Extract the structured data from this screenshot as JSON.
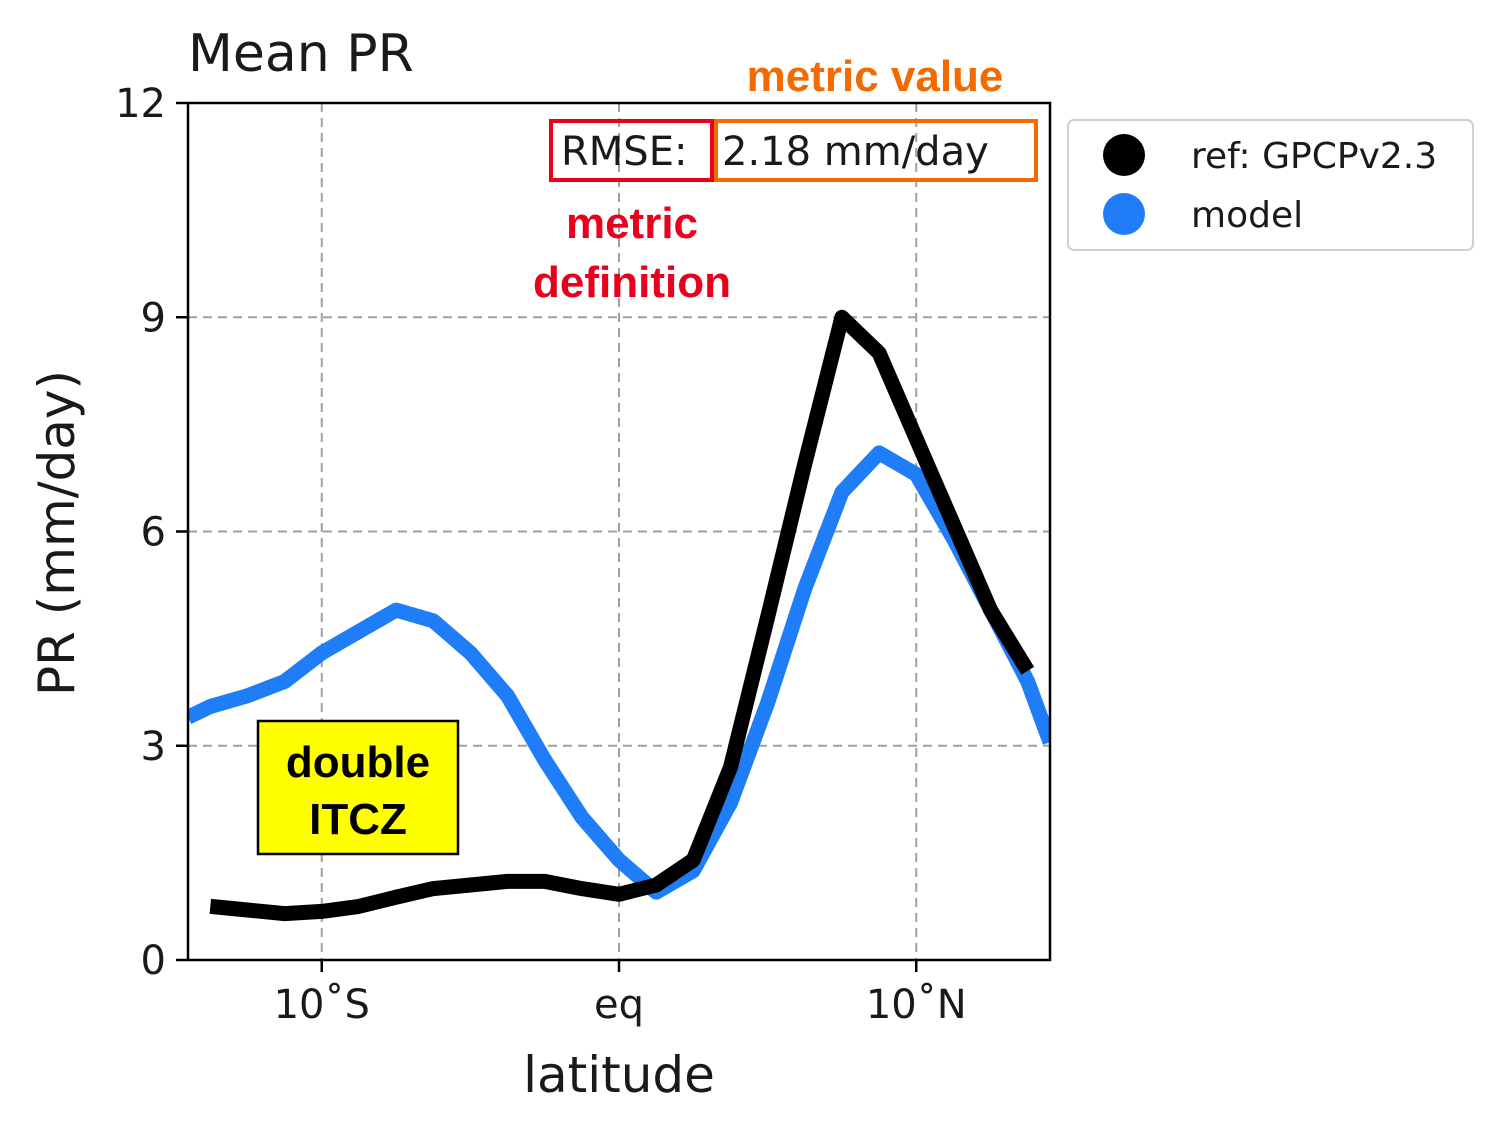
{
  "colors": {
    "reference": "#000000",
    "model": "#1f7ef7",
    "metric_definition": "#e8001c",
    "metric_value": "#f26a00",
    "itcz_box": "#ffff00",
    "grid": "#a0a0a0"
  },
  "chart_data": {
    "type": "line",
    "title": "Mean PR",
    "xlabel": "latitude",
    "ylabel": "PR (mm/day)",
    "xlim": [
      -14.5,
      14.5
    ],
    "ylim": [
      0,
      12
    ],
    "xticks": [
      {
        "value": -10,
        "label": "10˚S"
      },
      {
        "value": 0,
        "label": "eq"
      },
      {
        "value": 10,
        "label": "10˚N"
      }
    ],
    "yticks": [
      {
        "value": 0,
        "label": "0"
      },
      {
        "value": 3,
        "label": "3"
      },
      {
        "value": 6,
        "label": "6"
      },
      {
        "value": 9,
        "label": "9"
      },
      {
        "value": 12,
        "label": "12"
      }
    ],
    "grid": true,
    "legend_position": "outside-right",
    "series": [
      {
        "name": "ref: GPCPv2.3",
        "color": "#000000",
        "x": [
          -13.75,
          -12.5,
          -11.25,
          -10.0,
          -8.75,
          -7.5,
          -6.25,
          -5.0,
          -3.75,
          -2.5,
          -1.25,
          0.0,
          1.25,
          2.5,
          3.75,
          5.0,
          6.25,
          7.5,
          8.75,
          10.0,
          11.25,
          12.5,
          13.75
        ],
        "values": [
          0.75,
          0.7,
          0.65,
          0.68,
          0.75,
          0.88,
          1.0,
          1.05,
          1.1,
          1.1,
          1.0,
          0.92,
          1.05,
          1.4,
          2.7,
          4.8,
          6.95,
          9.0,
          8.5,
          7.3,
          6.1,
          4.9,
          4.05
        ]
      },
      {
        "name": "model",
        "color": "#1f7ef7",
        "x": [
          -14.5,
          -13.75,
          -12.5,
          -11.25,
          -10.0,
          -8.75,
          -7.5,
          -6.25,
          -5.0,
          -3.75,
          -2.5,
          -1.25,
          0.0,
          1.25,
          2.5,
          3.75,
          5.0,
          6.25,
          7.5,
          8.75,
          10.0,
          11.25,
          12.5,
          13.75,
          14.5
        ],
        "values": [
          3.4,
          3.55,
          3.7,
          3.9,
          4.3,
          4.6,
          4.9,
          4.75,
          4.3,
          3.7,
          2.8,
          2.0,
          1.4,
          0.95,
          1.25,
          2.2,
          3.6,
          5.2,
          6.55,
          7.1,
          6.8,
          5.9,
          4.9,
          3.9,
          3.05
        ]
      }
    ],
    "annotations": {
      "metric_definition_box": "RMSE:",
      "metric_value_box": "2.18 mm/day",
      "metric_value_caption": "metric value",
      "metric_definition_caption": [
        "metric",
        "definition"
      ],
      "itcz_note": [
        "double",
        "ITCZ"
      ]
    }
  }
}
